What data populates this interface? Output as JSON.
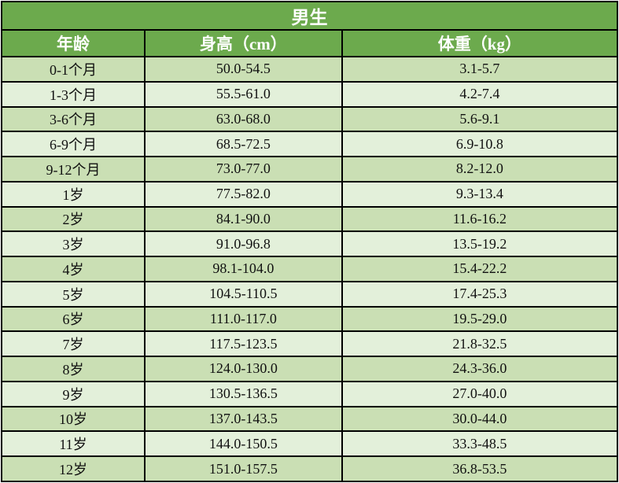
{
  "chart_data": {
    "type": "table",
    "title": "男生",
    "columns": [
      "年龄",
      "身高（cm）",
      "体重（kg）"
    ],
    "rows": [
      [
        "0-1个月",
        "50.0-54.5",
        "3.1-5.7"
      ],
      [
        "1-3个月",
        "55.5-61.0",
        "4.2-7.4"
      ],
      [
        "3-6个月",
        "63.0-68.0",
        "5.6-9.1"
      ],
      [
        "6-9个月",
        "68.5-72.5",
        "6.9-10.8"
      ],
      [
        "9-12个月",
        "73.0-77.0",
        "8.2-12.0"
      ],
      [
        "1岁",
        "77.5-82.0",
        "9.3-13.4"
      ],
      [
        "2岁",
        "84.1-90.0",
        "11.6-16.2"
      ],
      [
        "3岁",
        "91.0-96.8",
        "13.5-19.2"
      ],
      [
        "4岁",
        "98.1-104.0",
        "15.4-22.2"
      ],
      [
        "5岁",
        "104.5-110.5",
        "17.4-25.3"
      ],
      [
        "6岁",
        "111.0-117.0",
        "19.5-29.0"
      ],
      [
        "7岁",
        "117.5-123.5",
        "21.8-32.5"
      ],
      [
        "8岁",
        "124.0-130.0",
        "24.3-36.0"
      ],
      [
        "9岁",
        "130.5-136.5",
        "27.0-40.0"
      ],
      [
        "10岁",
        "137.0-143.5",
        "30.0-44.0"
      ],
      [
        "11岁",
        "144.0-150.5",
        "33.3-48.5"
      ],
      [
        "12岁",
        "151.0-157.5",
        "36.8-53.5"
      ]
    ]
  },
  "colors": {
    "header_bg": "#6caa4d",
    "row_even_bg": "#cadfb4",
    "row_odd_bg": "#e3f0da",
    "border": "#000000",
    "header_text": "#ffffff",
    "body_text": "#111111"
  }
}
